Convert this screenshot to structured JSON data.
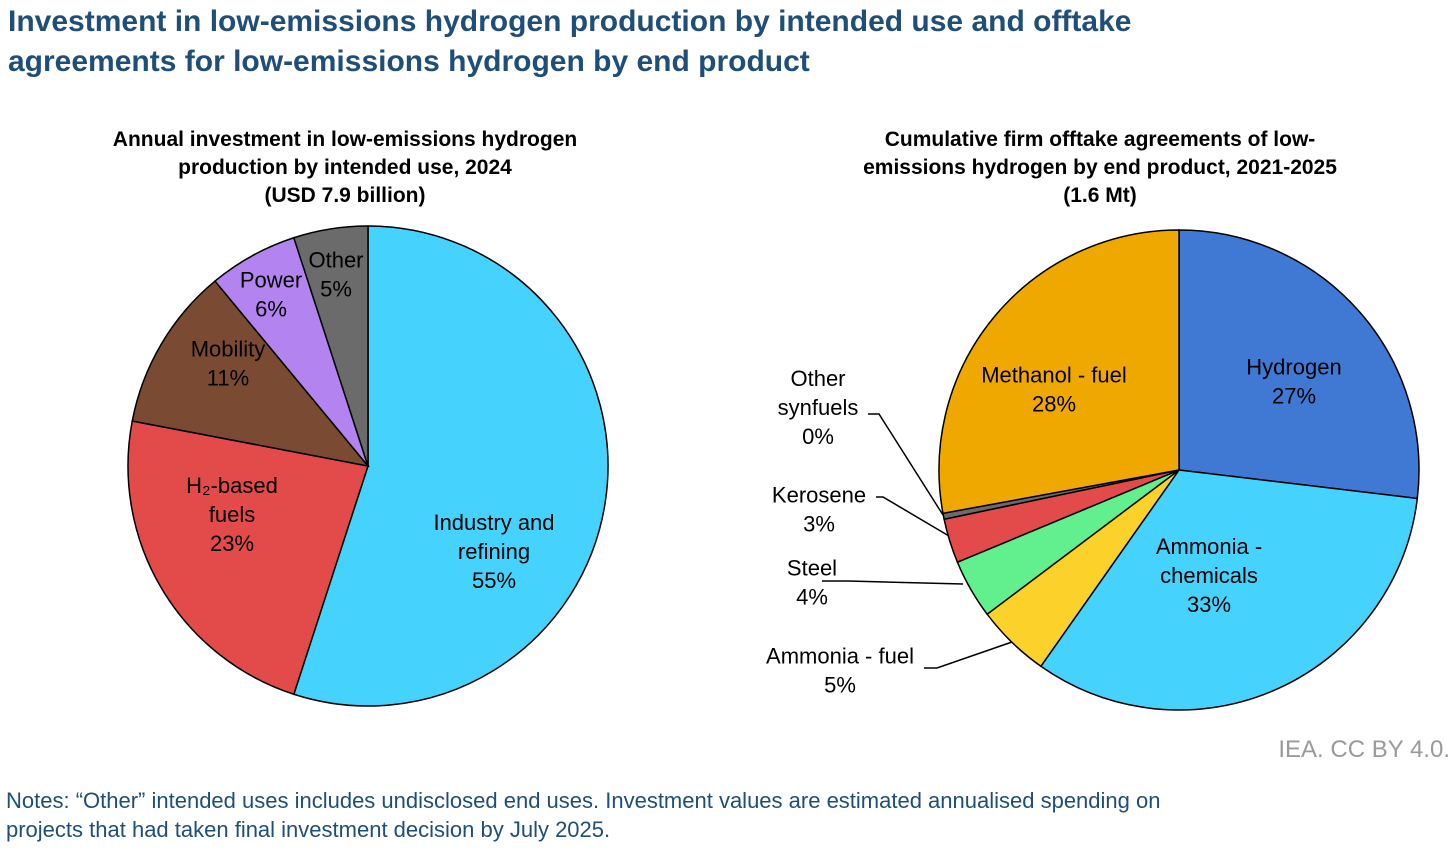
{
  "page": {
    "title_lines": [
      "Investment in low-emissions hydrogen production by intended use and offtake",
      "agreements for low-emissions hydrogen by end product"
    ],
    "credit": "IEA. CC BY 4.0.",
    "notes_lines": [
      "Notes: “Other” intended uses includes undisclosed end uses. Investment values are estimated annualised spending on",
      "projects that had taken final investment decision by July 2025."
    ]
  },
  "chart_data": [
    {
      "type": "pie",
      "title_lines": [
        "Annual investment in low-emissions hydrogen",
        "production by intended use, 2024",
        "(USD 7.9 billion)"
      ],
      "unit": "%",
      "slices": [
        {
          "name": "Industry and refining",
          "label_lines": [
            "Industry and",
            "refining",
            "55%"
          ],
          "value": 55,
          "color": "#45d2fc"
        },
        {
          "name": "H₂-based fuels",
          "label_lines": [
            "H₂-based",
            "fuels",
            "23%"
          ],
          "value": 23,
          "color": "#e34a4a"
        },
        {
          "name": "Mobility",
          "label_lines": [
            "Mobility",
            "11%"
          ],
          "value": 11,
          "color": "#7b4a33"
        },
        {
          "name": "Power",
          "label_lines": [
            "Power",
            "6%"
          ],
          "value": 6,
          "color": "#b384f0"
        },
        {
          "name": "Other",
          "label_lines": [
            "Other",
            "5%"
          ],
          "value": 5,
          "color": "#6b6b6b"
        }
      ]
    },
    {
      "type": "pie",
      "title_lines": [
        "Cumulative firm offtake agreements of low-",
        "emissions hydrogen by end product, 2021-2025",
        "(1.6 Mt)"
      ],
      "unit": "%",
      "slices": [
        {
          "name": "Hydrogen",
          "label_lines": [
            "Hydrogen",
            "27%"
          ],
          "value": 27,
          "color": "#3f79d4"
        },
        {
          "name": "Ammonia - chemicals",
          "label_lines": [
            "Ammonia -",
            "chemicals",
            "33%"
          ],
          "value": 33,
          "color": "#45d2fc"
        },
        {
          "name": "Ammonia - fuel",
          "label_lines": [
            "Ammonia - fuel",
            "5%"
          ],
          "value": 5,
          "color": "#fbd12a"
        },
        {
          "name": "Steel",
          "label_lines": [
            "Steel",
            "4%"
          ],
          "value": 4,
          "color": "#62f08f"
        },
        {
          "name": "Kerosene",
          "label_lines": [
            "Kerosene",
            "3%"
          ],
          "value": 3,
          "color": "#e34a4a"
        },
        {
          "name": "Other synfuels",
          "label_lines": [
            "Other",
            "synfuels",
            "0%"
          ],
          "value": 0.4,
          "color": "#6b6b6b"
        },
        {
          "name": "Methanol - fuel",
          "label_lines": [
            "Methanol - fuel",
            "28%"
          ],
          "value": 28,
          "color": "#eea800"
        }
      ]
    }
  ]
}
